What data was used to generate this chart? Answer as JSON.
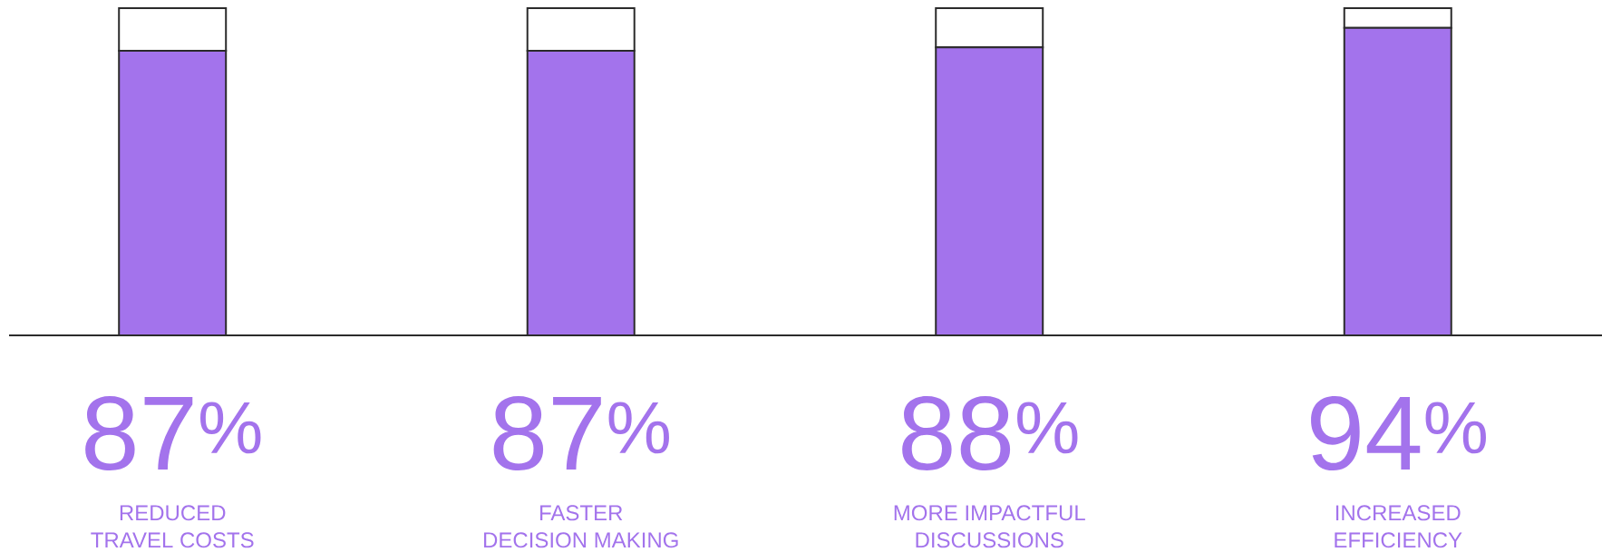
{
  "chart_data": {
    "type": "bar",
    "stacked": true,
    "categories": [
      "REDUCED\nTRAVEL COSTS",
      "FASTER\nDECISION MAKING",
      "MORE IMPACTFUL\nDISCUSSIONS",
      "INCREASED\nEFFICIENCY"
    ],
    "series": [
      {
        "color": "#a373ec",
        "values": [
          87,
          87,
          88,
          94
        ],
        "value_labels": [
          "87$^{%}$",
          "87$^{%}$",
          "88$^{%}$",
          "94$^{%}$"
        ]
      },
      {
        "color": "#ffffff",
        "values": [
          13,
          13,
          12,
          6
        ]
      }
    ],
    "ylim": [
      0,
      100
    ],
    "tick_labels": "x"
  }
}
